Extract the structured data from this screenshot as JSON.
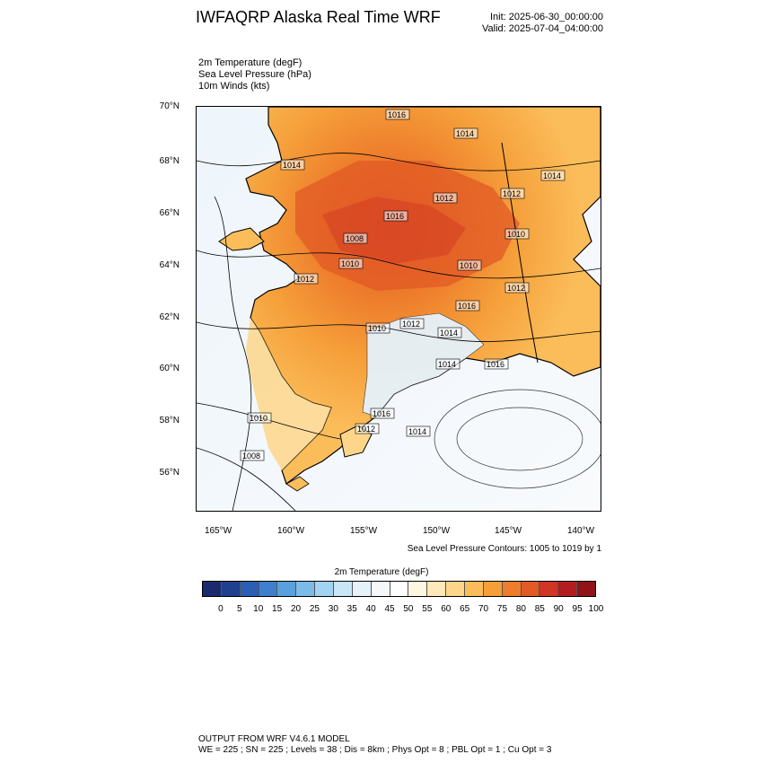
{
  "header": {
    "title": "IWFAQRP Alaska Real Time WRF",
    "init": "Init: 2025-06-30_00:00:00",
    "valid": "Valid: 2025-07-04_04:00:00"
  },
  "fields": [
    "2m Temperature   (degF)",
    "Sea Level Pressure   (hPa)",
    "10m Winds   (kts)"
  ],
  "map": {
    "lat_ticks": [
      "70°N",
      "68°N",
      "66°N",
      "64°N",
      "62°N",
      "60°N",
      "58°N",
      "56°N"
    ],
    "lon_ticks": [
      "165°W",
      "160°W",
      "155°W",
      "150°W",
      "145°W",
      "140°W"
    ],
    "pressure_labels": [
      "1016",
      "1014",
      "1014",
      "1012",
      "1012",
      "1014",
      "1016",
      "1008",
      "1010",
      "1010",
      "1010",
      "1012",
      "1012",
      "1016",
      "1010",
      "1012",
      "1014",
      "1014",
      "1016",
      "1010",
      "1008",
      "1012",
      "1016",
      "1014"
    ],
    "slp_note": "Sea Level Pressure Contours: 1005 to 1019 by 1"
  },
  "colorbar": {
    "title": "2m Temperature  (degF)",
    "labels": [
      "0",
      "5",
      "10",
      "15",
      "20",
      "25",
      "30",
      "35",
      "40",
      "45",
      "50",
      "55",
      "60",
      "65",
      "70",
      "75",
      "80",
      "85",
      "90",
      "95",
      "100"
    ],
    "colors": [
      "#1a2a6c",
      "#1f3f8f",
      "#2b5fb4",
      "#3f7fcc",
      "#5aa0dc",
      "#7cbbe8",
      "#a3d3f2",
      "#c9e6f7",
      "#e6f2fb",
      "#f4f8fc",
      "#ffffff",
      "#fff6e2",
      "#ffe9b8",
      "#fdd68a",
      "#fbbd5a",
      "#f59f3a",
      "#ee7d2c",
      "#e25a25",
      "#cf3623",
      "#b31d1f",
      "#8e1418"
    ]
  },
  "footer": {
    "line1": "OUTPUT FROM WRF V4.6.1 MODEL",
    "line2": "WE = 225 ; SN = 225 ; Levels = 38 ; Dis = 8km ; Phys Opt = 8 ; PBL Opt = 1 ; Cu Opt = 3"
  }
}
